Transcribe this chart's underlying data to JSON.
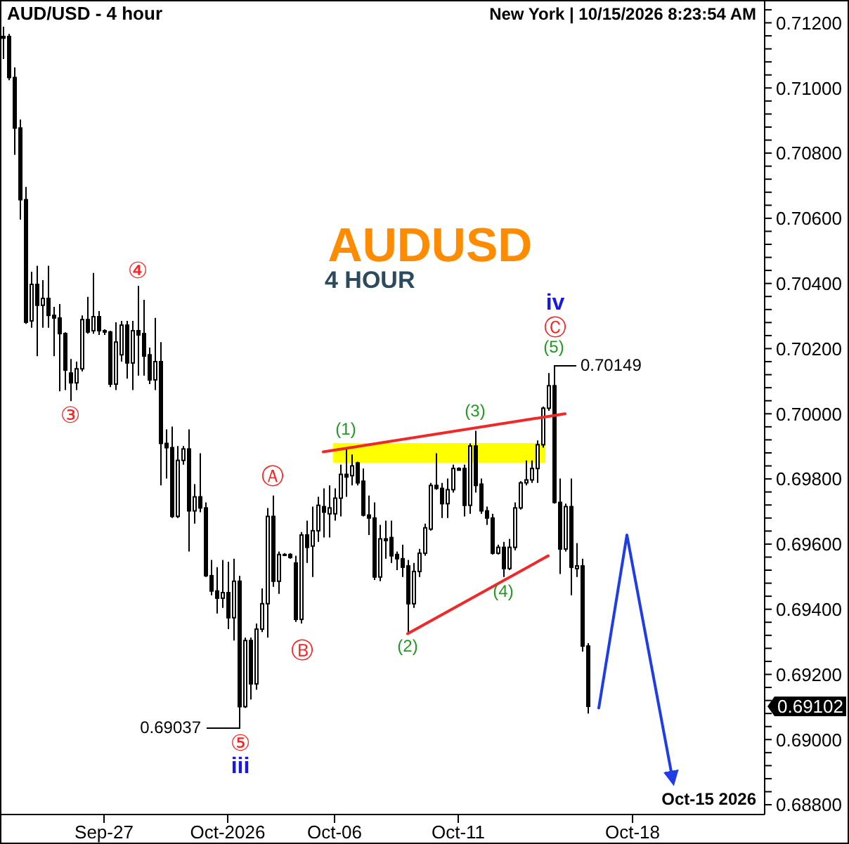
{
  "chart_data": {
    "type": "candlestick",
    "title": "AUD/USD - 4 hour",
    "subtitle": "New York | 10/15/2026 8:23:54 AM",
    "color": "#000000",
    "categories": [
      null,
      null,
      null,
      null,
      null,
      null,
      null,
      null,
      null,
      null,
      null,
      null,
      null,
      null,
      null,
      null,
      null,
      null,
      "Sep-27",
      null,
      null,
      null,
      null,
      null,
      null,
      null,
      null,
      null,
      null,
      null,
      null,
      null,
      null,
      null,
      null,
      null,
      null,
      null,
      null,
      null,
      "Oct-2026",
      null,
      null,
      null,
      null,
      null,
      null,
      null,
      null,
      null,
      null,
      null,
      null,
      null,
      null,
      null,
      null,
      null,
      null,
      "Oct-06",
      null,
      null,
      null,
      null,
      null,
      null,
      null,
      null,
      null,
      null,
      null,
      null,
      null,
      null,
      null,
      null,
      null,
      null,
      null,
      null,
      null,
      "Oct-11",
      null,
      null,
      null,
      null,
      null,
      null,
      null,
      null,
      null,
      null,
      null,
      null,
      null,
      null,
      null,
      null,
      null,
      null,
      null,
      null,
      null,
      null,
      null,
      null,
      null,
      null,
      null,
      null,
      null,
      null,
      "Oct-18",
      null,
      null,
      null,
      null,
      null,
      null,
      null,
      null,
      null,
      null,
      null,
      null,
      null,
      null,
      null,
      null,
      null,
      null,
      null,
      null,
      null,
      null,
      null
    ],
    "ohlc": [
      [
        0.71158,
        0.71188,
        0.71089,
        0.71153
      ],
      [
        0.71158,
        0.71166,
        0.71024,
        0.71032
      ],
      [
        0.71032,
        0.71063,
        0.70795,
        0.70877
      ],
      [
        0.70877,
        0.70903,
        0.70596,
        0.70657
      ],
      [
        0.70657,
        0.70696,
        0.70276,
        0.70281
      ],
      [
        0.70285,
        0.70436,
        0.70264,
        0.70397
      ],
      [
        0.70397,
        0.70454,
        0.70177,
        0.70333
      ],
      [
        0.70333,
        0.7041,
        0.70264,
        0.70354
      ],
      [
        0.70354,
        0.70454,
        0.70264,
        0.70302
      ],
      [
        0.70302,
        0.70328,
        0.70177,
        0.70294
      ],
      [
        0.70294,
        0.70337,
        0.70069,
        0.70246
      ],
      [
        0.70246,
        0.7025,
        0.70073,
        0.70134
      ],
      [
        0.70125,
        0.70168,
        0.70039,
        0.70095
      ],
      [
        0.70095,
        0.7016,
        0.70073,
        0.70138
      ],
      [
        0.70138,
        0.70302,
        0.7013,
        0.70289
      ],
      [
        0.70289,
        0.70359,
        0.70246,
        0.70251
      ],
      [
        0.70255,
        0.70432,
        0.70246,
        0.70298
      ],
      [
        0.70298,
        0.70315,
        0.70242,
        0.70255
      ],
      [
        0.70255,
        0.70259,
        0.70242,
        0.70251
      ],
      [
        0.70251,
        0.70255,
        0.70082,
        0.70091
      ],
      [
        0.70091,
        0.70281,
        0.70073,
        0.7022
      ],
      [
        0.70181,
        0.70285,
        0.7016,
        0.70272
      ],
      [
        0.70272,
        0.70285,
        0.70108,
        0.70156
      ],
      [
        0.70156,
        0.70285,
        0.70073,
        0.70255
      ],
      [
        0.70255,
        0.70393,
        0.70117,
        0.70242
      ],
      [
        0.70246,
        0.7035,
        0.70117,
        0.70177
      ],
      [
        0.70181,
        0.70203,
        0.70091,
        0.70104
      ],
      [
        0.70104,
        0.70294,
        0.70073,
        0.7016
      ],
      [
        0.7016,
        0.7022,
        0.6978,
        0.69909
      ],
      [
        0.69909,
        0.69952,
        0.69801,
        0.69896
      ],
      [
        0.69896,
        0.69961,
        0.6968,
        0.69685
      ],
      [
        0.69685,
        0.69901,
        0.6968,
        0.69857
      ],
      [
        0.69857,
        0.69901,
        0.69844,
        0.69892
      ],
      [
        0.69892,
        0.69952,
        0.69577,
        0.69702
      ],
      [
        0.69702,
        0.69784,
        0.69663,
        0.69745
      ],
      [
        0.69745,
        0.69879,
        0.69698,
        0.69711
      ],
      [
        0.69711,
        0.69728,
        0.69499,
        0.69503
      ],
      [
        0.69503,
        0.69551,
        0.69443,
        0.69456
      ],
      [
        0.69456,
        0.69529,
        0.69387,
        0.69434
      ],
      [
        0.69434,
        0.69551,
        0.69404,
        0.69451
      ],
      [
        0.69451,
        0.69546,
        0.69339,
        0.69374
      ],
      [
        0.69374,
        0.69555,
        0.69304,
        0.69486
      ],
      [
        0.69486,
        0.69503,
        0.69037,
        0.69101
      ],
      [
        0.69101,
        0.69313,
        0.69097,
        0.69304
      ],
      [
        0.69304,
        0.69313,
        0.69123,
        0.69171
      ],
      [
        0.69171,
        0.69356,
        0.69153,
        0.69339
      ],
      [
        0.69339,
        0.69464,
        0.6933,
        0.69417
      ],
      [
        0.69417,
        0.69711,
        0.69313,
        0.69685
      ],
      [
        0.69685,
        0.69749,
        0.69469,
        0.69486
      ],
      [
        0.69486,
        0.69577,
        0.69447,
        0.69568
      ],
      [
        0.69568,
        0.69572,
        0.69563,
        0.69566
      ],
      [
        0.69568,
        0.69572,
        0.69555,
        0.69559
      ],
      [
        0.69542,
        0.69564,
        0.69361,
        0.69369
      ],
      [
        0.69369,
        0.69637,
        0.69356,
        0.69628
      ],
      [
        0.69628,
        0.69672,
        0.69542,
        0.6959
      ],
      [
        0.69594,
        0.69715,
        0.69499,
        0.69641
      ],
      [
        0.69641,
        0.69745,
        0.69607,
        0.69719
      ],
      [
        0.69715,
        0.69771,
        0.6962,
        0.69698
      ],
      [
        0.69693,
        0.6978,
        0.6962,
        0.69711
      ],
      [
        0.69693,
        0.69771,
        0.69672,
        0.69741
      ],
      [
        0.69741,
        0.69844,
        0.69685,
        0.69814
      ],
      [
        0.69814,
        0.69892,
        0.69745,
        0.69806
      ],
      [
        0.6981,
        0.69875,
        0.6978,
        0.6984
      ],
      [
        0.69849,
        0.69853,
        0.6978,
        0.69788
      ],
      [
        0.69793,
        0.69832,
        0.69685,
        0.69689
      ],
      [
        0.69689,
        0.69749,
        0.69628,
        0.6968
      ],
      [
        0.6968,
        0.69728,
        0.6949,
        0.69499
      ],
      [
        0.69499,
        0.69659,
        0.69486,
        0.69616
      ],
      [
        0.69616,
        0.69672,
        0.69555,
        0.69611
      ],
      [
        0.6962,
        0.69672,
        0.69542,
        0.69564
      ],
      [
        0.69568,
        0.69577,
        0.6952,
        0.69555
      ],
      [
        0.69555,
        0.69598,
        0.69499,
        0.69529
      ],
      [
        0.69533,
        0.69551,
        0.6933,
        0.69417
      ],
      [
        0.69417,
        0.69542,
        0.69404,
        0.69516
      ],
      [
        0.69516,
        0.69585,
        0.69499,
        0.69572
      ],
      [
        0.69572,
        0.69663,
        0.69564,
        0.6965
      ],
      [
        0.69646,
        0.69788,
        0.69641,
        0.6978
      ],
      [
        0.6978,
        0.69879,
        0.69767,
        0.69771
      ],
      [
        0.69771,
        0.69788,
        0.6968,
        0.69724
      ],
      [
        0.69724,
        0.69801,
        0.6968,
        0.69767
      ],
      [
        0.69767,
        0.69844,
        0.69758,
        0.69832
      ],
      [
        0.69832,
        0.69836,
        0.69827,
        0.69827
      ],
      [
        0.69832,
        0.69844,
        0.69685,
        0.69719
      ],
      [
        0.69719,
        0.69909,
        0.69693,
        0.69901
      ],
      [
        0.69901,
        0.69948,
        0.69758,
        0.6978
      ],
      [
        0.69784,
        0.69801,
        0.69693,
        0.69702
      ],
      [
        0.69702,
        0.69715,
        0.69659,
        0.6968
      ],
      [
        0.6968,
        0.69693,
        0.69568,
        0.69572
      ],
      [
        0.69572,
        0.69598,
        0.69568,
        0.6959
      ],
      [
        0.6959,
        0.69607,
        0.69499,
        0.69525
      ],
      [
        0.69525,
        0.69616,
        0.6952,
        0.6959
      ],
      [
        0.6959,
        0.69728,
        0.69581,
        0.69711
      ],
      [
        0.69711,
        0.69793,
        0.69706,
        0.69788
      ],
      [
        0.69788,
        0.69857,
        0.6978,
        0.69797
      ],
      [
        0.69797,
        0.69857,
        0.69788,
        0.69832
      ],
      [
        0.69832,
        0.69918,
        0.69788,
        0.69905
      ],
      [
        0.69905,
        0.70022,
        0.69896,
        0.70017
      ],
      [
        0.70017,
        0.70125,
        0.70009,
        0.70086
      ],
      [
        0.70086,
        0.70149,
        0.69724,
        0.69728
      ],
      [
        0.69728,
        0.69801,
        0.69508,
        0.69585
      ],
      [
        0.69585,
        0.69724,
        0.69577,
        0.69715
      ],
      [
        0.69715,
        0.69801,
        0.69443,
        0.69529
      ],
      [
        0.69525,
        0.69603,
        0.69499,
        0.69533
      ],
      [
        0.69533,
        0.69555,
        0.6927,
        0.69287
      ],
      [
        0.69287,
        0.69296,
        0.6908,
        0.69102
      ],
      null,
      null,
      null,
      null,
      null,
      null,
      null,
      null,
      null,
      null,
      null,
      null,
      null,
      null,
      null,
      null,
      null,
      null,
      null,
      null,
      null,
      null,
      null,
      null,
      null,
      null,
      null,
      null,
      null,
      null,
      null
    ],
    "series": [
      {
        "type": "line",
        "color": "#f02828",
        "values": [
          null,
          null,
          null,
          null,
          null,
          null,
          null,
          null,
          null,
          null,
          null,
          null,
          null,
          null,
          null,
          null,
          null,
          null,
          null,
          null,
          null,
          null,
          null,
          null,
          null,
          null,
          null,
          null,
          null,
          null,
          null,
          null,
          null,
          null,
          null,
          null,
          null,
          null,
          null,
          null,
          null,
          null,
          null,
          null,
          null,
          null,
          null,
          null,
          null,
          null,
          null,
          null,
          null,
          null,
          null,
          null,
          null,
          0.69883,
          null,
          null,
          null,
          null,
          null,
          null,
          null,
          null,
          null,
          null,
          null,
          null,
          null,
          null,
          null,
          null,
          null,
          null,
          null,
          null,
          null,
          null,
          null,
          null,
          null,
          null,
          null,
          null,
          null,
          null,
          null,
          null,
          null,
          null,
          null,
          null,
          null,
          null,
          null,
          null,
          null,
          null,
          0.7,
          null,
          null,
          null,
          null,
          null,
          null,
          null,
          null,
          null,
          null,
          null,
          null,
          null,
          null,
          null,
          null,
          null,
          null,
          null,
          null,
          null,
          null,
          null,
          null,
          null,
          null,
          null,
          null,
          null,
          null,
          null,
          null,
          null,
          null,
          null
        ]
      },
      {
        "type": "line",
        "color": "#f02828",
        "values": [
          null,
          null,
          null,
          null,
          null,
          null,
          null,
          null,
          null,
          null,
          null,
          null,
          null,
          null,
          null,
          null,
          null,
          null,
          null,
          null,
          null,
          null,
          null,
          null,
          null,
          null,
          null,
          null,
          null,
          null,
          null,
          null,
          null,
          null,
          null,
          null,
          null,
          null,
          null,
          null,
          null,
          null,
          null,
          null,
          null,
          null,
          null,
          null,
          null,
          null,
          null,
          null,
          null,
          null,
          null,
          null,
          null,
          null,
          null,
          null,
          null,
          null,
          null,
          null,
          null,
          null,
          null,
          null,
          null,
          null,
          null,
          null,
          0.69325,
          null,
          null,
          null,
          null,
          null,
          null,
          null,
          null,
          null,
          null,
          null,
          null,
          null,
          null,
          null,
          null,
          null,
          null,
          null,
          null,
          null,
          null,
          null,
          null,
          0.69564,
          null,
          null,
          null,
          null,
          null,
          null,
          null,
          null,
          null,
          null,
          null,
          null,
          null,
          null,
          null,
          null,
          null,
          null,
          null,
          null,
          null,
          null,
          null,
          null,
          null,
          null,
          null,
          null,
          null,
          null,
          null,
          null,
          null,
          null,
          null,
          null,
          null,
          null
        ]
      },
      {
        "type": "line",
        "color": "#1f3de6",
        "values": [
          null,
          null,
          null,
          null,
          null,
          null,
          null,
          null,
          null,
          null,
          null,
          null,
          null,
          null,
          null,
          null,
          null,
          null,
          null,
          null,
          null,
          null,
          null,
          null,
          null,
          null,
          null,
          null,
          null,
          null,
          null,
          null,
          null,
          null,
          null,
          null,
          null,
          null,
          null,
          null,
          null,
          null,
          null,
          null,
          null,
          null,
          null,
          null,
          null,
          null,
          null,
          null,
          null,
          null,
          null,
          null,
          null,
          null,
          null,
          null,
          null,
          null,
          null,
          null,
          null,
          null,
          null,
          null,
          null,
          null,
          null,
          null,
          null,
          null,
          null,
          null,
          null,
          null,
          null,
          null,
          null,
          null,
          null,
          null,
          null,
          null,
          null,
          null,
          null,
          null,
          null,
          null,
          null,
          null,
          null,
          null,
          null,
          null,
          null,
          null,
          null,
          null,
          null,
          null,
          null,
          null,
          0.69097,
          null,
          null,
          null,
          null,
          0.69628,
          null,
          null,
          null,
          null,
          null,
          null,
          null,
          0.6889,
          null,
          null,
          null,
          null,
          null,
          null,
          null,
          null,
          null,
          null,
          null,
          null,
          null,
          null,
          null,
          null
        ]
      }
    ],
    "ylim": [
      0.6877,
      0.7127
    ],
    "yticks": [
      {
        "value": 0.688,
        "label": "0.68800"
      },
      {
        "value": 0.6884,
        "label": null
      },
      {
        "value": 0.6888,
        "label": null
      },
      {
        "value": 0.6892,
        "label": null
      },
      {
        "value": 0.6896,
        "label": null
      },
      {
        "value": 0.69,
        "label": "0.69000"
      },
      {
        "value": 0.6904,
        "label": null
      },
      {
        "value": 0.6908,
        "label": null
      },
      {
        "value": 0.6912,
        "label": null
      },
      {
        "value": 0.6916,
        "label": null
      },
      {
        "value": 0.692,
        "label": "0.69200"
      },
      {
        "value": 0.6924,
        "label": null
      },
      {
        "value": 0.6928,
        "label": null
      },
      {
        "value": 0.6932,
        "label": null
      },
      {
        "value": 0.6936,
        "label": null
      },
      {
        "value": 0.694,
        "label": "0.69400"
      },
      {
        "value": 0.6944,
        "label": null
      },
      {
        "value": 0.6948,
        "label": null
      },
      {
        "value": 0.6952,
        "label": null
      },
      {
        "value": 0.6956,
        "label": null
      },
      {
        "value": 0.696,
        "label": "0.69600"
      },
      {
        "value": 0.6964,
        "label": null
      },
      {
        "value": 0.6968,
        "label": null
      },
      {
        "value": 0.6972,
        "label": null
      },
      {
        "value": 0.6976,
        "label": null
      },
      {
        "value": 0.698,
        "label": "0.69800"
      },
      {
        "value": 0.6984,
        "label": null
      },
      {
        "value": 0.6988,
        "label": null
      },
      {
        "value": 0.6992,
        "label": null
      },
      {
        "value": 0.6996,
        "label": null
      },
      {
        "value": 0.7,
        "label": "0.70000"
      },
      {
        "value": 0.7004,
        "label": null
      },
      {
        "value": 0.7008,
        "label": null
      },
      {
        "value": 0.7012,
        "label": null
      },
      {
        "value": 0.7016,
        "label": null
      },
      {
        "value": 0.702,
        "label": "0.70200"
      },
      {
        "value": 0.7024,
        "label": null
      },
      {
        "value": 0.7028,
        "label": null
      },
      {
        "value": 0.7032,
        "label": null
      },
      {
        "value": 0.7036,
        "label": null
      },
      {
        "value": 0.704,
        "label": "0.70400"
      },
      {
        "value": 0.7044,
        "label": null
      },
      {
        "value": 0.7048,
        "label": null
      },
      {
        "value": 0.7052,
        "label": null
      },
      {
        "value": 0.7056,
        "label": null
      },
      {
        "value": 0.706,
        "label": "0.70600"
      },
      {
        "value": 0.7064,
        "label": null
      },
      {
        "value": 0.7068,
        "label": null
      },
      {
        "value": 0.7072,
        "label": null
      },
      {
        "value": 0.7076,
        "label": null
      },
      {
        "value": 0.708,
        "label": "0.70800"
      },
      {
        "value": 0.7084,
        "label": null
      },
      {
        "value": 0.7088,
        "label": null
      },
      {
        "value": 0.7092,
        "label": null
      },
      {
        "value": 0.7096,
        "label": null
      },
      {
        "value": 0.71,
        "label": "0.71000"
      },
      {
        "value": 0.7104,
        "label": null
      },
      {
        "value": 0.7108,
        "label": null
      },
      {
        "value": 0.7112,
        "label": null
      },
      {
        "value": 0.7116,
        "label": null
      },
      {
        "value": 0.712,
        "label": "0.71200"
      },
      {
        "value": 0.7124,
        "label": null
      }
    ],
    "bands": [
      {
        "axis": "y",
        "from": 0.6985,
        "to": 0.6991,
        "color": "#ffff00"
      }
    ],
    "annotations": [
      "AUDUSD",
      "4 HOUR",
      {
        "text": "③",
        "y": 0.70039
      },
      {
        "text": "④",
        "y": 0.70393
      },
      {
        "text": "⑤",
        "y": 0.69037
      },
      {
        "text": "iii",
        "y": 0.69037
      },
      {
        "text": "Ⓐ",
        "y": 0.69749
      },
      {
        "text": "Ⓑ",
        "y": 0.69361
      },
      {
        "text": "(1)",
        "y": 0.69892
      },
      {
        "text": "(2)",
        "y": 0.6933
      },
      {
        "text": "(3)",
        "y": 0.69948
      },
      {
        "text": "(4)",
        "y": 0.69499
      },
      {
        "text": "(5)",
        "y": 0.70149
      },
      {
        "text": "Ⓒ",
        "y": 0.70149
      },
      {
        "text": "iv",
        "y": 0.70149
      },
      "0.70149",
      "0.69037",
      "0.69102",
      "Oct-15 2026"
    ]
  }
}
